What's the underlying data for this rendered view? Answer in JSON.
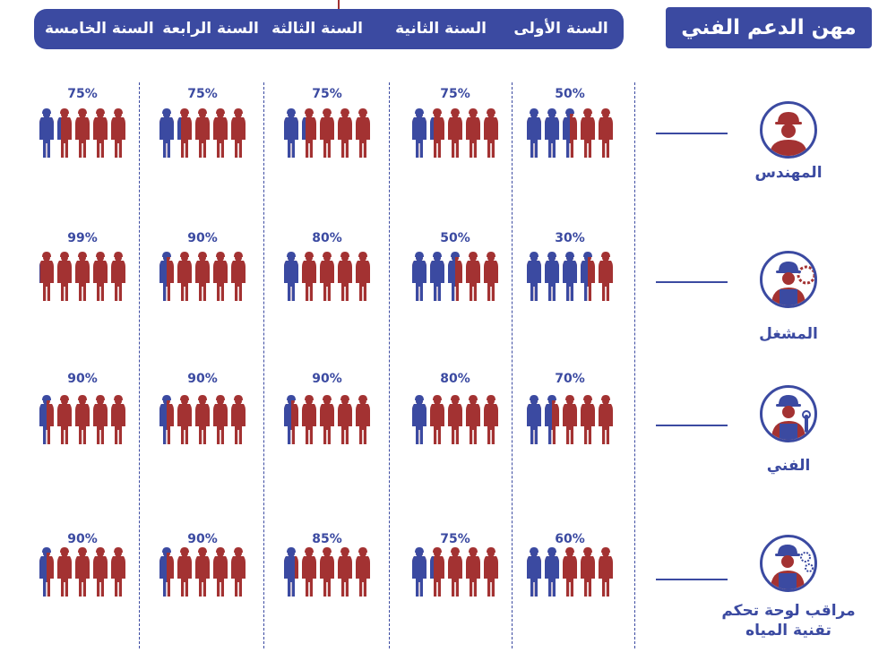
{
  "title": "مهن الدعم الفني",
  "colors": {
    "accent": "#3b4aa1",
    "worker_blue": "#3b4aa1",
    "worker_red": "#a33232"
  },
  "years": [
    {
      "label": "السنة الأولى"
    },
    {
      "label": "السنة الثانية"
    },
    {
      "label": "السنة الثالثة"
    },
    {
      "label": "السنة الرابعة"
    },
    {
      "label": "السنة الخامسة"
    }
  ],
  "roles": [
    {
      "name": "المهندس",
      "icon": "engineer-icon"
    },
    {
      "name": "المشغل",
      "icon": "operator-icon"
    },
    {
      "name": "الفني",
      "icon": "technician-icon"
    },
    {
      "name": "مراقب لوحة تحكم تقنية المياه",
      "line1": "مراقب لوحة تحكم",
      "line2": "تقنية المياه",
      "icon": "control-panel-monitor-icon"
    }
  ],
  "chart_data": {
    "type": "pictograph",
    "categories": [
      "السنة الأولى",
      "السنة الثانية",
      "السنة الثالثة",
      "السنة الرابعة",
      "السنة الخامسة"
    ],
    "unit": "%",
    "icons_per_cell": 5,
    "series": [
      {
        "name": "المهندس",
        "values": [
          50,
          75,
          75,
          75,
          75
        ],
        "labels": [
          "50%",
          "75%",
          "75%",
          "75%",
          "75%"
        ]
      },
      {
        "name": "المشغل",
        "values": [
          30,
          50,
          80,
          90,
          99
        ],
        "labels": [
          "30%",
          "50%",
          "80%",
          "90%",
          "99%"
        ]
      },
      {
        "name": "الفني",
        "values": [
          70,
          80,
          90,
          90,
          90
        ],
        "labels": [
          "70%",
          "80%",
          "90%",
          "90%",
          "90%"
        ]
      },
      {
        "name": "مراقب لوحة تحكم تقنية المياه",
        "values": [
          60,
          75,
          85,
          90,
          90
        ],
        "labels": [
          "60%",
          "75%",
          "85%",
          "90%",
          "90%"
        ]
      }
    ]
  }
}
